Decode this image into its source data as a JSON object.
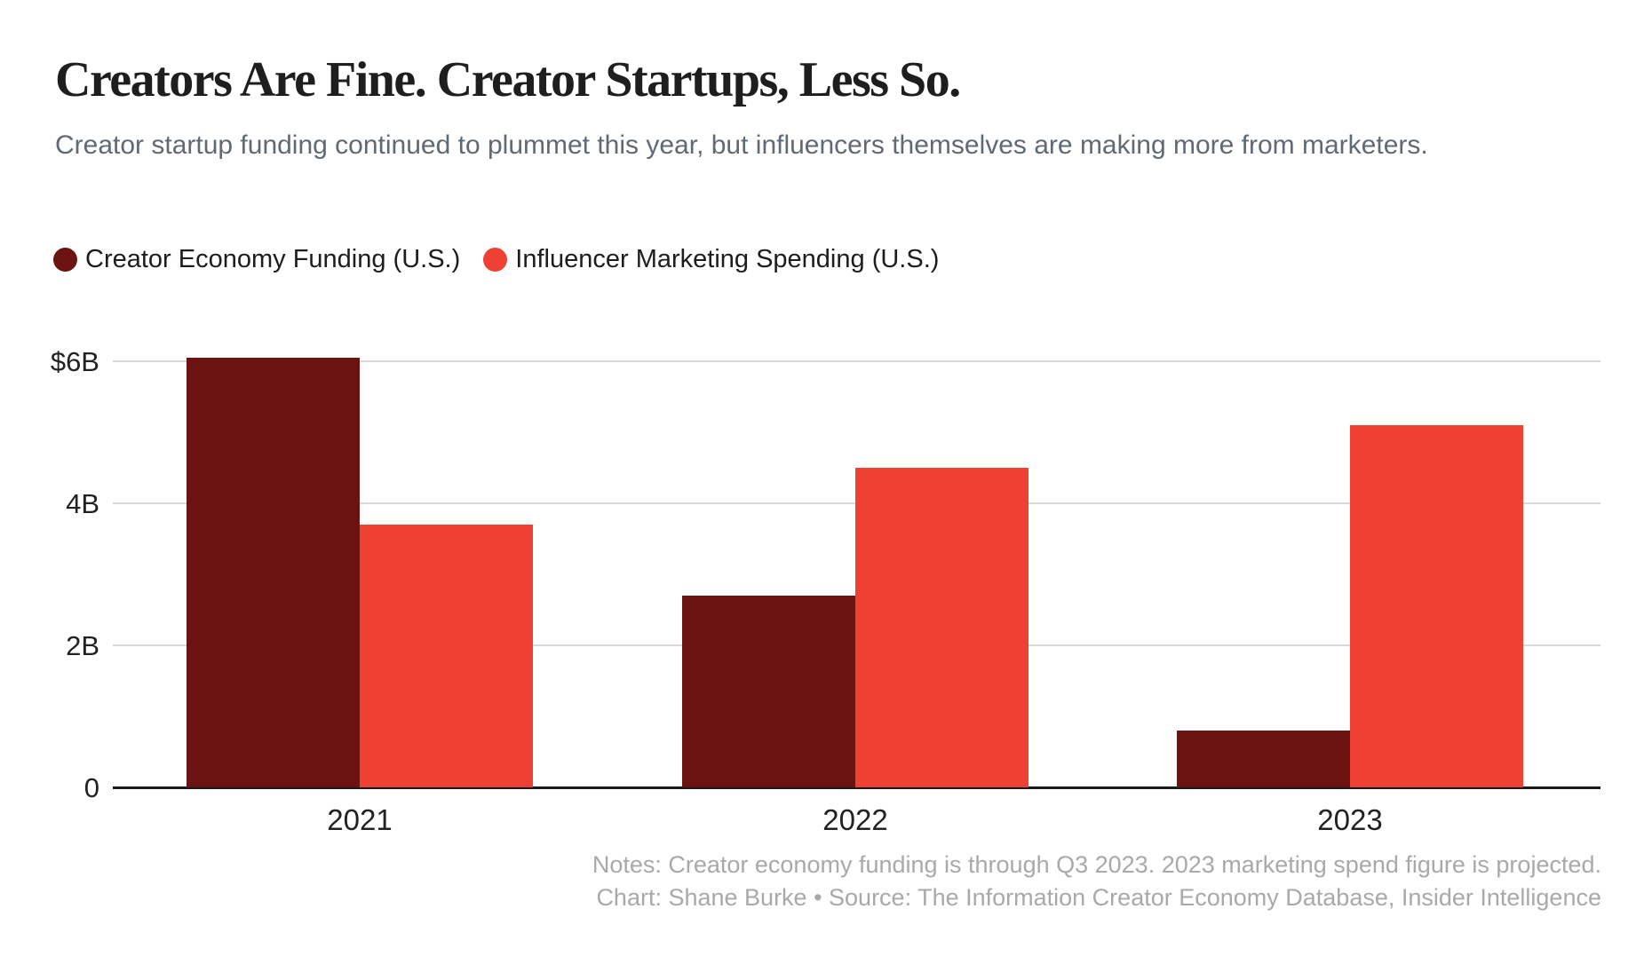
{
  "header": {
    "title": "Creators Are Fine. Creator Startups, Less So.",
    "subtitle": "Creator startup funding continued to plummet this year, but influencers themselves are making more from marketers."
  },
  "chart_data": {
    "type": "bar",
    "title": "Creators Are Fine. Creator Startups, Less So.",
    "subtitle": "Creator startup funding continued to plummet this year, but influencers themselves are making more from marketers.",
    "categories": [
      "2021",
      "2022",
      "2023"
    ],
    "series": [
      {
        "name": "Creator Economy Funding (U.S.)",
        "color": "#6b1310",
        "values": [
          6.05,
          2.7,
          0.8
        ]
      },
      {
        "name": "Influencer Marketing Spending (U.S.)",
        "color": "#ee4134",
        "values": [
          3.7,
          4.5,
          5.1
        ]
      }
    ],
    "value_unit": "billions of U.S. dollars",
    "xlabel": "",
    "ylabel": "",
    "ylim": [
      0,
      6.775
    ],
    "yticks": [
      {
        "value": 6,
        "label": "$6B"
      },
      {
        "value": 4,
        "label": "4B"
      },
      {
        "value": 2,
        "label": "2B"
      },
      {
        "value": 0,
        "label": "0"
      }
    ],
    "grid": "horizontal",
    "legend_position": "top-left"
  },
  "footer": {
    "notes": "Notes: Creator economy funding is through Q3 2023. 2023 marketing spend figure is projected.",
    "credit": "Chart: Shane Burke • Source: The Information Creator Economy Database, Insider Intelligence"
  },
  "colors": {
    "background": "#ffffff",
    "title_text": "#1e1e1e",
    "subtitle_text": "#606a74",
    "axis_text": "#222222",
    "gridline": "#d8d8d8",
    "axis_line": "#1a1a1a",
    "footer_text": "#a9a9a9",
    "series_funding": "#6b1310",
    "series_marketing": "#ee4134"
  }
}
